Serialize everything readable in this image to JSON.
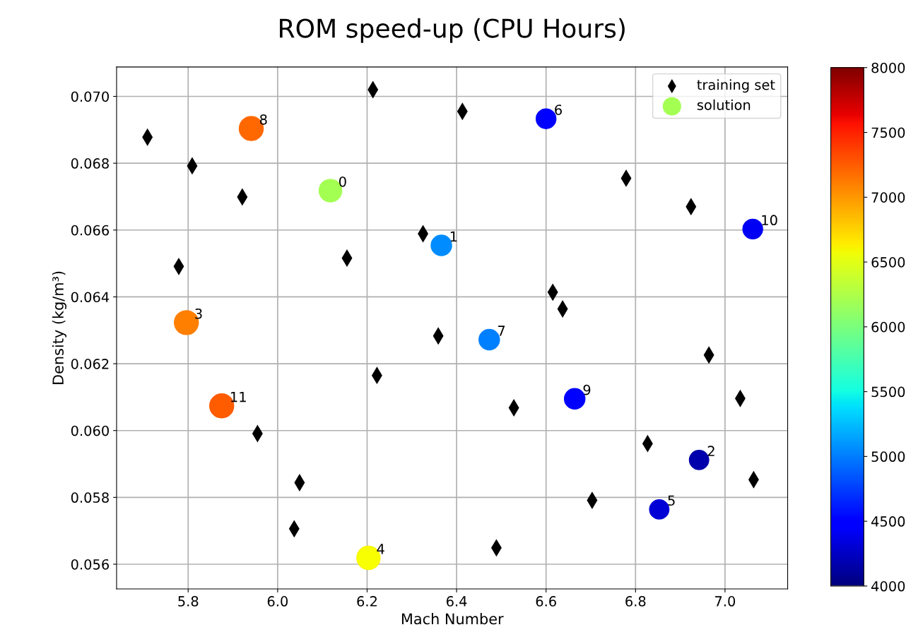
{
  "chart_data": {
    "type": "scatter",
    "title": "ROM speed-up (CPU Hours)",
    "xlabel": "Mach Number",
    "ylabel": "Density (kg/m³)",
    "xlim": [
      5.64,
      7.14
    ],
    "xticks": [
      5.8,
      {
        "value": 6.0,
        "label": "6.0"
      },
      6.2,
      6.4,
      6.6,
      6.8,
      {
        "value": 7.0,
        "label": "7.0"
      }
    ],
    "ylim": [
      0.05526,
      0.07088
    ],
    "yticks": [
      0.056,
      0.058,
      {
        "value": 0.06,
        "label": "0.060"
      },
      0.062,
      0.064,
      0.066,
      0.068,
      {
        "value": 0.07,
        "label": "0.070"
      }
    ],
    "grid": true,
    "legend": "top right",
    "clim": [
      4000,
      8000
    ],
    "cticks": [
      4000,
      4500,
      5000,
      5500,
      6000,
      6500,
      7000,
      7500,
      8000
    ],
    "series": [
      {
        "name": "training set",
        "color": "#000000",
        "marker": "diamond",
        "x": [
          6.213,
          6.413,
          5.709,
          5.809,
          5.921,
          6.325,
          6.155,
          5.779,
          6.779,
          6.924,
          6.615,
          6.637,
          6.359,
          6.222,
          5.955,
          6.049,
          6.037,
          6.964,
          6.528,
          7.034,
          6.827,
          7.064,
          6.703,
          6.489
        ],
        "values": [
          0.0702,
          0.06955,
          0.06878,
          0.06792,
          0.06699,
          0.06589,
          0.06516,
          0.06491,
          0.06755,
          0.0667,
          0.06414,
          0.06364,
          0.06283,
          0.06165,
          0.05991,
          0.05844,
          0.05706,
          0.06226,
          0.06068,
          0.06096,
          0.05961,
          0.05853,
          0.05791,
          0.05649
        ]
      },
      {
        "name": "solution",
        "marker": "circle",
        "x": [
          6.118,
          6.366,
          6.942,
          5.796,
          6.203,
          6.853,
          6.6,
          6.473,
          5.941,
          6.664,
          7.062,
          5.875
        ],
        "values": [
          0.06718,
          0.06554,
          0.05912,
          0.06323,
          0.05619,
          0.05764,
          0.06933,
          0.06272,
          0.06904,
          0.06095,
          0.06603,
          0.06074
        ],
        "colors": [
          "#a4ff53",
          "#008cff",
          "#0000ac",
          "#ff7f00",
          "#f7ff00",
          "#0000d6",
          "#0000ff",
          "#007fff",
          "#ff6800",
          "#0000ff",
          "#0000f4",
          "#ff5c00"
        ],
        "cvalues": [
          6200,
          5050,
          4150,
          7100,
          6600,
          4300,
          4500,
          5000,
          7200,
          4500,
          4400,
          7250
        ],
        "sizes": [
          0.89,
          0.73,
          0.65,
          1,
          0.94,
          0.65,
          0.68,
          0.73,
          1,
          0.73,
          0.68,
          1
        ]
      }
    ],
    "annotations": [
      {
        "text": "0",
        "x": 6.118,
        "y": 0.06718
      },
      {
        "text": "1",
        "x": 6.366,
        "y": 0.06554
      },
      {
        "text": "2",
        "x": 6.942,
        "y": 0.05912
      },
      {
        "text": "3",
        "x": 5.796,
        "y": 0.06323
      },
      {
        "text": "4",
        "x": 6.203,
        "y": 0.05619
      },
      {
        "text": "5",
        "x": 6.853,
        "y": 0.05764
      },
      {
        "text": "6",
        "x": 6.6,
        "y": 0.06933
      },
      {
        "text": "7",
        "x": 6.473,
        "y": 0.06272
      },
      {
        "text": "8",
        "x": 5.941,
        "y": 0.06904
      },
      {
        "text": "9",
        "x": 6.664,
        "y": 0.06095
      },
      {
        "text": "10",
        "x": 7.062,
        "y": 0.06603
      },
      {
        "text": "11",
        "x": 5.875,
        "y": 0.06074
      }
    ]
  }
}
